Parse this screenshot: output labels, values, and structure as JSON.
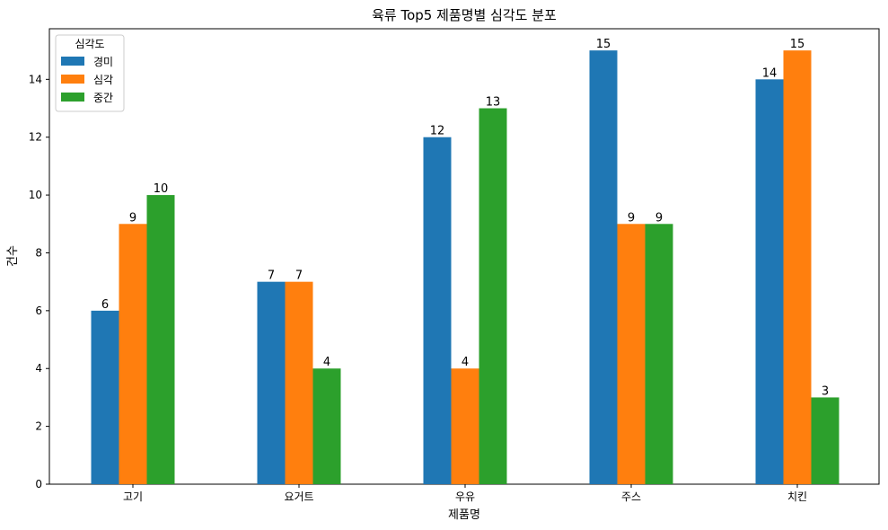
{
  "chart_data": {
    "type": "bar",
    "title": "육류 Top5 제품명별 심각도 분포",
    "xlabel": "제품명",
    "ylabel": "건수",
    "categories": [
      "고기",
      "요거트",
      "우유",
      "주스",
      "치킨"
    ],
    "series": [
      {
        "name": "경미",
        "color": "#1f77b4",
        "values": [
          6,
          7,
          12,
          15,
          14
        ]
      },
      {
        "name": "심각",
        "color": "#ff7f0e",
        "values": [
          9,
          7,
          4,
          9,
          15
        ]
      },
      {
        "name": "중간",
        "color": "#2ca02c",
        "values": [
          10,
          4,
          13,
          9,
          3
        ]
      }
    ],
    "ylim": [
      0,
      15.75
    ],
    "yticks": [
      0,
      2,
      4,
      6,
      8,
      10,
      12,
      14
    ],
    "legend_title": "심각도",
    "legend_position": "top-left",
    "grid": false
  }
}
